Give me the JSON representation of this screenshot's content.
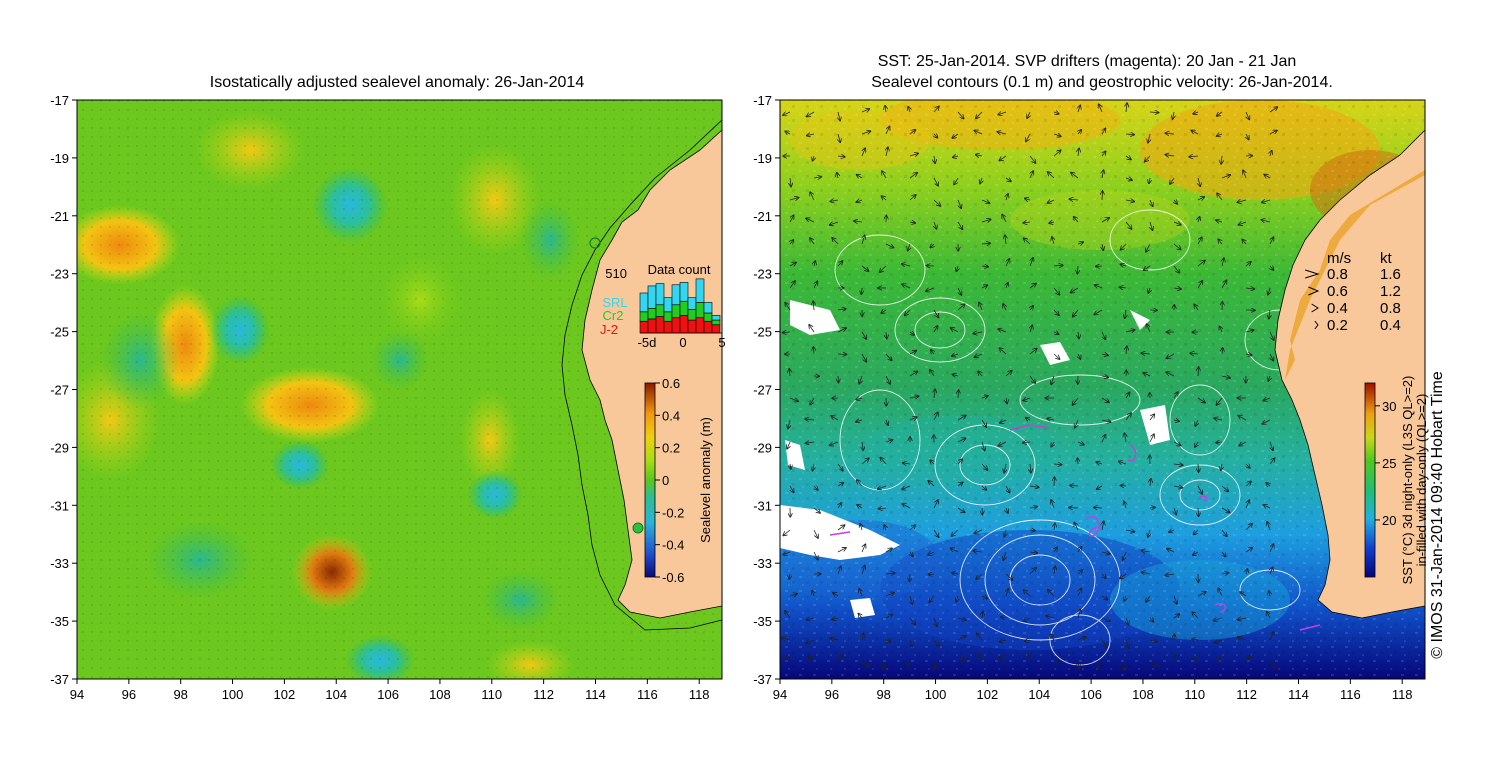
{
  "left_panel": {
    "title": "Isostatically adjusted sealevel anomaly: 26-Jan-2014",
    "x_ticks": [
      "94",
      "96",
      "98",
      "100",
      "102",
      "104",
      "106",
      "108",
      "110",
      "112",
      "114",
      "116",
      "118"
    ],
    "y_ticks": [
      "-17",
      "-19",
      "-21",
      "-23",
      "-25",
      "-27",
      "-29",
      "-31",
      "-33",
      "-35",
      "-37"
    ],
    "colorbar": {
      "label": "Sealevel anomaly (m)",
      "ticks": [
        "0.6",
        "0.4",
        "0.2",
        "0",
        "-0.2",
        "-0.4",
        "-0.6"
      ],
      "range": [
        -0.6,
        0.6
      ]
    },
    "data_count": {
      "title": "Data count",
      "max_label": "510",
      "x_labels": [
        "-5d",
        "0",
        "5"
      ],
      "series": [
        {
          "name": "SRL",
          "color": "#33d6ee"
        },
        {
          "name": "Cr2",
          "color": "#22cc22"
        },
        {
          "name": "J-2",
          "color": "#ee1111"
        }
      ],
      "bars": [
        {
          "srl": 160,
          "cr2": 80,
          "j2": 100
        },
        {
          "srl": 190,
          "cr2": 90,
          "j2": 120
        },
        {
          "srl": 180,
          "cr2": 100,
          "j2": 140
        },
        {
          "srl": 120,
          "cr2": 80,
          "j2": 100
        },
        {
          "srl": 170,
          "cr2": 110,
          "j2": 130
        },
        {
          "srl": 160,
          "cr2": 120,
          "j2": 150
        },
        {
          "srl": 100,
          "cr2": 90,
          "j2": 110
        },
        {
          "srl": 200,
          "cr2": 130,
          "j2": 130
        },
        {
          "srl": 90,
          "cr2": 70,
          "j2": 100
        },
        {
          "srl": 40,
          "cr2": 40,
          "j2": 70
        }
      ]
    }
  },
  "right_panel": {
    "title_line1": "SST: 25-Jan-2014. SVP drifters (magenta): 20 Jan - 21 Jan",
    "title_line2": "Sealevel contours (0.1 m) and geostrophic velocity: 26-Jan-2014.",
    "x_ticks": [
      "94",
      "96",
      "98",
      "100",
      "102",
      "104",
      "106",
      "108",
      "110",
      "112",
      "114",
      "116",
      "118"
    ],
    "y_ticks": [
      "-17",
      "-19",
      "-21",
      "-23",
      "-25",
      "-27",
      "-29",
      "-31",
      "-33",
      "-35",
      "-37"
    ],
    "velocity_legend": {
      "header_ms": "m/s",
      "header_kt": "kt",
      "rows": [
        {
          "ms": "0.8",
          "kt": "1.6"
        },
        {
          "ms": "0.6",
          "kt": "1.2"
        },
        {
          "ms": "0.4",
          "kt": "0.8"
        },
        {
          "ms": "0.2",
          "kt": "0.4"
        }
      ]
    },
    "colorbar": {
      "label_line1": "SST (°C) 3d night-only (L3S QL>=2)",
      "label_line2": "in-filled with day-only (QL>=2)",
      "ticks": [
        "30",
        "25",
        "20"
      ],
      "range": [
        15,
        32
      ]
    },
    "credit": "© IMOS 31-Jan-2014 09:40 Hobart Time"
  },
  "colors": {
    "land": "#f9c89a",
    "sla_base": "#6cc81e",
    "sst_base": "#3ab53a"
  }
}
